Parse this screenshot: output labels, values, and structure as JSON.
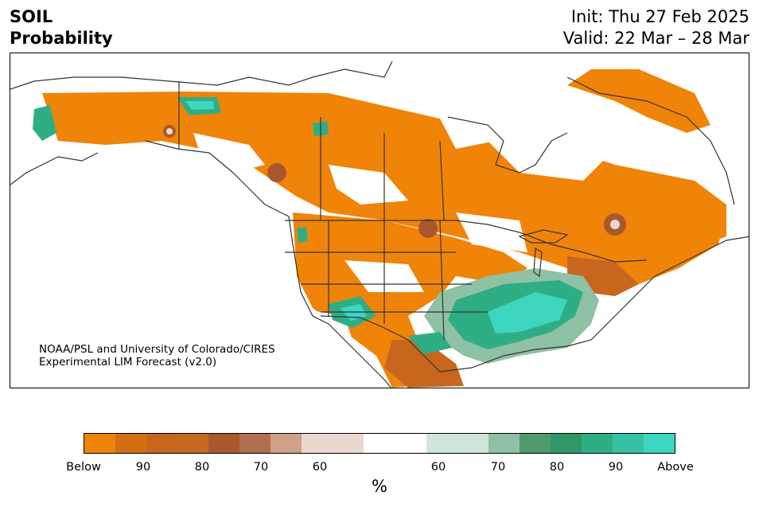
{
  "header": {
    "title_line1": "SOIL",
    "title_line2": "Probability",
    "init": "Init: Thu 27 Feb 2025",
    "valid": "Valid: 22 Mar – 28 Mar"
  },
  "credit": {
    "line1": "NOAA/PSL and University of Colorado/CIRES",
    "line2": "Experimental LIM Forecast (v2.0)"
  },
  "colorbar": {
    "unit": "%",
    "colors": [
      "#f08408",
      "#d46f14",
      "#c9661e",
      "#c86820",
      "#a9582e",
      "#b06e50",
      "#cfa08a",
      "#ead8cf",
      "#ffffff",
      "#cfe5da",
      "#8fc1a5",
      "#4f9a6c",
      "#2f9866",
      "#2fae86",
      "#35c2a4",
      "#3dd7c0"
    ],
    "tick_labels": [
      "Below",
      "90",
      "80",
      "70",
      "60",
      "60",
      "70",
      "80",
      "90",
      "Above"
    ]
  },
  "map": {
    "colors": {
      "below": "#f08408",
      "below_strong": "#c9661e",
      "below_brown": "#a9582e",
      "near": "#ead8cf",
      "above_light": "#8fc1a5",
      "above": "#2fae86",
      "above_strong": "#3dd7c0",
      "border": "#333333"
    }
  }
}
